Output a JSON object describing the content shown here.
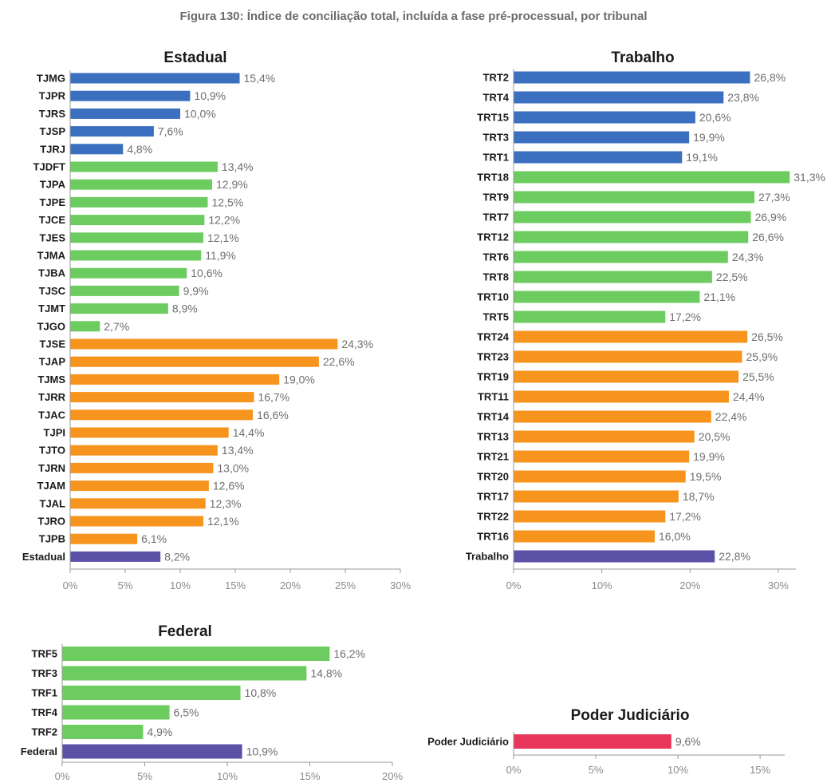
{
  "figure_title": "Figura 130: Índice de conciliação total, incluída a fase pré-processual, por tribunal",
  "colors": {
    "blue": "#3b6fc0",
    "green": "#6dcc5f",
    "orange": "#f7941d",
    "purple": "#5b52a8",
    "red": "#e8365b"
  },
  "chart_data": [
    {
      "type": "bar",
      "orientation": "horizontal",
      "title": "Estadual",
      "xlim": [
        0,
        30
      ],
      "ticks": [
        "0%",
        "5%",
        "10%",
        "15%",
        "20%",
        "25%",
        "30%"
      ],
      "tick_values": [
        0,
        5,
        10,
        15,
        20,
        25,
        30
      ],
      "bars": [
        {
          "label": "TJMG",
          "value": 15.4,
          "text": "15,4%",
          "group": "blue"
        },
        {
          "label": "TJPR",
          "value": 10.9,
          "text": "10,9%",
          "group": "blue"
        },
        {
          "label": "TJRS",
          "value": 10.0,
          "text": "10,0%",
          "group": "blue"
        },
        {
          "label": "TJSP",
          "value": 7.6,
          "text": "7,6%",
          "group": "blue"
        },
        {
          "label": "TJRJ",
          "value": 4.8,
          "text": "4,8%",
          "group": "blue"
        },
        {
          "label": "TJDFT",
          "value": 13.4,
          "text": "13,4%",
          "group": "green"
        },
        {
          "label": "TJPA",
          "value": 12.9,
          "text": "12,9%",
          "group": "green"
        },
        {
          "label": "TJPE",
          "value": 12.5,
          "text": "12,5%",
          "group": "green"
        },
        {
          "label": "TJCE",
          "value": 12.2,
          "text": "12,2%",
          "group": "green"
        },
        {
          "label": "TJES",
          "value": 12.1,
          "text": "12,1%",
          "group": "green"
        },
        {
          "label": "TJMA",
          "value": 11.9,
          "text": "11,9%",
          "group": "green"
        },
        {
          "label": "TJBA",
          "value": 10.6,
          "text": "10,6%",
          "group": "green"
        },
        {
          "label": "TJSC",
          "value": 9.9,
          "text": "9,9%",
          "group": "green"
        },
        {
          "label": "TJMT",
          "value": 8.9,
          "text": "8,9%",
          "group": "green"
        },
        {
          "label": "TJGO",
          "value": 2.7,
          "text": "2,7%",
          "group": "green"
        },
        {
          "label": "TJSE",
          "value": 24.3,
          "text": "24,3%",
          "group": "orange"
        },
        {
          "label": "TJAP",
          "value": 22.6,
          "text": "22,6%",
          "group": "orange"
        },
        {
          "label": "TJMS",
          "value": 19.0,
          "text": "19,0%",
          "group": "orange"
        },
        {
          "label": "TJRR",
          "value": 16.7,
          "text": "16,7%",
          "group": "orange"
        },
        {
          "label": "TJAC",
          "value": 16.6,
          "text": "16,6%",
          "group": "orange"
        },
        {
          "label": "TJPI",
          "value": 14.4,
          "text": "14,4%",
          "group": "orange"
        },
        {
          "label": "TJTO",
          "value": 13.4,
          "text": "13,4%",
          "group": "orange"
        },
        {
          "label": "TJRN",
          "value": 13.0,
          "text": "13,0%",
          "group": "orange"
        },
        {
          "label": "TJAM",
          "value": 12.6,
          "text": "12,6%",
          "group": "orange"
        },
        {
          "label": "TJAL",
          "value": 12.3,
          "text": "12,3%",
          "group": "orange"
        },
        {
          "label": "TJRO",
          "value": 12.1,
          "text": "12,1%",
          "group": "orange"
        },
        {
          "label": "TJPB",
          "value": 6.1,
          "text": "6,1%",
          "group": "orange"
        },
        {
          "label": "Estadual",
          "value": 8.2,
          "text": "8,2%",
          "group": "purple"
        }
      ]
    },
    {
      "type": "bar",
      "orientation": "horizontal",
      "title": "Trabalho",
      "xlim": [
        0,
        32
      ],
      "ticks": [
        "0%",
        "10%",
        "20%",
        "30%"
      ],
      "tick_values": [
        0,
        10,
        20,
        30
      ],
      "bars": [
        {
          "label": "TRT2",
          "value": 26.8,
          "text": "26,8%",
          "group": "blue"
        },
        {
          "label": "TRT4",
          "value": 23.8,
          "text": "23,8%",
          "group": "blue"
        },
        {
          "label": "TRT15",
          "value": 20.6,
          "text": "20,6%",
          "group": "blue"
        },
        {
          "label": "TRT3",
          "value": 19.9,
          "text": "19,9%",
          "group": "blue"
        },
        {
          "label": "TRT1",
          "value": 19.1,
          "text": "19,1%",
          "group": "blue"
        },
        {
          "label": "TRT18",
          "value": 31.3,
          "text": "31,3%",
          "group": "green"
        },
        {
          "label": "TRT9",
          "value": 27.3,
          "text": "27,3%",
          "group": "green"
        },
        {
          "label": "TRT7",
          "value": 26.9,
          "text": "26,9%",
          "group": "green"
        },
        {
          "label": "TRT12",
          "value": 26.6,
          "text": "26,6%",
          "group": "green"
        },
        {
          "label": "TRT6",
          "value": 24.3,
          "text": "24,3%",
          "group": "green"
        },
        {
          "label": "TRT8",
          "value": 22.5,
          "text": "22,5%",
          "group": "green"
        },
        {
          "label": "TRT10",
          "value": 21.1,
          "text": "21,1%",
          "group": "green"
        },
        {
          "label": "TRT5",
          "value": 17.2,
          "text": "17,2%",
          "group": "green"
        },
        {
          "label": "TRT24",
          "value": 26.5,
          "text": "26,5%",
          "group": "orange"
        },
        {
          "label": "TRT23",
          "value": 25.9,
          "text": "25,9%",
          "group": "orange"
        },
        {
          "label": "TRT19",
          "value": 25.5,
          "text": "25,5%",
          "group": "orange"
        },
        {
          "label": "TRT11",
          "value": 24.4,
          "text": "24,4%",
          "group": "orange"
        },
        {
          "label": "TRT14",
          "value": 22.4,
          "text": "22,4%",
          "group": "orange"
        },
        {
          "label": "TRT13",
          "value": 20.5,
          "text": "20,5%",
          "group": "orange"
        },
        {
          "label": "TRT21",
          "value": 19.9,
          "text": "19,9%",
          "group": "orange"
        },
        {
          "label": "TRT20",
          "value": 19.5,
          "text": "19,5%",
          "group": "orange"
        },
        {
          "label": "TRT17",
          "value": 18.7,
          "text": "18,7%",
          "group": "orange"
        },
        {
          "label": "TRT22",
          "value": 17.2,
          "text": "17,2%",
          "group": "orange"
        },
        {
          "label": "TRT16",
          "value": 16.0,
          "text": "16,0%",
          "group": "orange"
        },
        {
          "label": "Trabalho",
          "value": 22.8,
          "text": "22,8%",
          "group": "purple"
        }
      ]
    },
    {
      "type": "bar",
      "orientation": "horizontal",
      "title": "Federal",
      "xlim": [
        0,
        20
      ],
      "ticks": [
        "0%",
        "5%",
        "10%",
        "15%",
        "20%"
      ],
      "tick_values": [
        0,
        5,
        10,
        15,
        20
      ],
      "bars": [
        {
          "label": "TRF5",
          "value": 16.2,
          "text": "16,2%",
          "group": "green"
        },
        {
          "label": "TRF3",
          "value": 14.8,
          "text": "14,8%",
          "group": "green"
        },
        {
          "label": "TRF1",
          "value": 10.8,
          "text": "10,8%",
          "group": "green"
        },
        {
          "label": "TRF4",
          "value": 6.5,
          "text": "6,5%",
          "group": "green"
        },
        {
          "label": "TRF2",
          "value": 4.9,
          "text": "4,9%",
          "group": "green"
        },
        {
          "label": "Federal",
          "value": 10.9,
          "text": "10,9%",
          "group": "purple"
        }
      ]
    },
    {
      "type": "bar",
      "orientation": "horizontal",
      "title": "Poder Judiciário",
      "xlim": [
        0,
        16.5
      ],
      "ticks": [
        "0%",
        "5%",
        "10%",
        "15%"
      ],
      "tick_values": [
        0,
        5,
        10,
        15
      ],
      "bars": [
        {
          "label": "Poder Judiciário",
          "value": 9.6,
          "text": "9,6%",
          "group": "red"
        }
      ]
    }
  ]
}
